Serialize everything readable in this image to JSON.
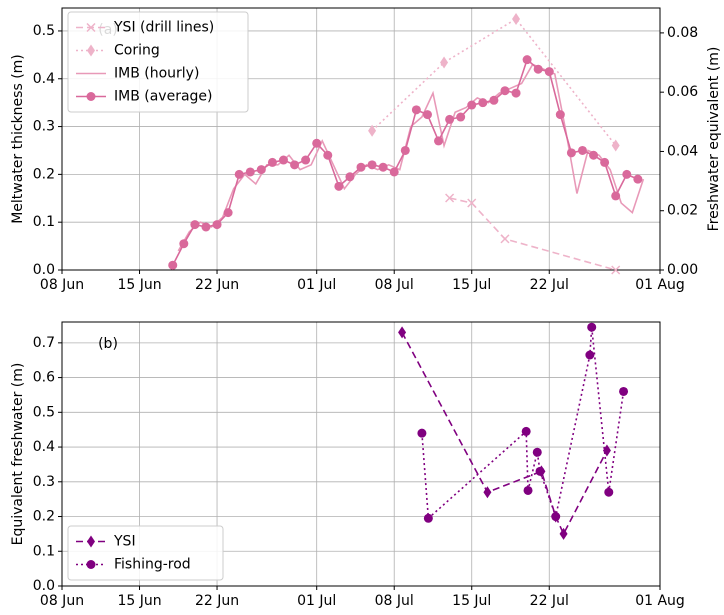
{
  "chart_data": [
    {
      "type": "line",
      "annotation": "(a)",
      "ylabel": "Meltwater thickness (m)",
      "y2label": "Freshwater equivalent (m)",
      "xlim": [
        "06-08",
        "08-01"
      ],
      "xticks": [
        {
          "value": "06-08",
          "label": "08 Jun"
        },
        {
          "value": "06-15",
          "label": "15 Jun"
        },
        {
          "value": "06-22",
          "label": "22 Jun"
        },
        {
          "value": "07-01",
          "label": "01 Jul"
        },
        {
          "value": "07-08",
          "label": "08 Jul"
        },
        {
          "value": "07-15",
          "label": "15 Jul"
        },
        {
          "value": "07-22",
          "label": "22 Jul"
        },
        {
          "value": "08-01",
          "label": "01 Aug"
        }
      ],
      "ylim": [
        0,
        0.548
      ],
      "yticks": [
        {
          "value": 0,
          "label": "0.0"
        },
        0.1,
        0.2,
        0.3,
        0.4,
        0.5
      ],
      "y2lim": [
        0,
        0.0884
      ],
      "y2ticks": [
        {
          "value": 0,
          "label": "0.00"
        },
        0.02,
        0.04,
        0.06,
        0.08
      ],
      "grid": true,
      "legend": "upper left",
      "series": [
        {
          "name": "YSI (drill lines)",
          "color": "#eeb3c9",
          "style": "dashed",
          "marker": "x",
          "axis": "y2",
          "x": [
            "07-13",
            "07-15",
            "07-18",
            "07-28"
          ],
          "values": [
            0.0243,
            0.0226,
            0.0105,
            0.0
          ]
        },
        {
          "name": "Coring",
          "color": "#eeb3c9",
          "style": "dotted",
          "marker": "diamond",
          "axis": "y2",
          "x": [
            "07-06",
            "07-12T12",
            "07-19",
            "07-28"
          ],
          "values": [
            0.047,
            0.07,
            0.0847,
            0.042
          ]
        },
        {
          "name": "IMB (hourly)",
          "color": "#e899b8",
          "style": "solid",
          "marker": "none",
          "x": [
            "06-18T12",
            "06-19T12",
            "06-20T12",
            "06-21T12",
            "06-22T12",
            "06-23T12",
            "06-24T12",
            "06-25T12",
            "06-26T12",
            "06-27T12",
            "06-28T12",
            "06-29T12",
            "06-30T12",
            "07-01T12",
            "07-02T12",
            "07-03T12",
            "07-04T12",
            "07-05T12",
            "07-06T12",
            "07-07T12",
            "07-08T12",
            "07-09T12",
            "07-10T12",
            "07-11T12",
            "07-12T12",
            "07-13T12",
            "07-14T12",
            "07-15T12",
            "07-16T12",
            "07-17T12",
            "07-18T12",
            "07-19T12",
            "07-20T12",
            "07-21T12",
            "07-22T12",
            "07-23T12",
            "07-24T12",
            "07-25T12",
            "07-26T12",
            "07-27T12",
            "07-28T12",
            "07-29T12",
            "07-30T12"
          ],
          "values": [
            0.04,
            0.08,
            0.1,
            0.09,
            0.11,
            0.17,
            0.2,
            0.18,
            0.22,
            0.22,
            0.24,
            0.21,
            0.22,
            0.27,
            0.22,
            0.17,
            0.2,
            0.22,
            0.21,
            0.22,
            0.21,
            0.3,
            0.32,
            0.37,
            0.26,
            0.33,
            0.34,
            0.36,
            0.35,
            0.37,
            0.38,
            0.39,
            0.43,
            0.42,
            0.41,
            0.29,
            0.16,
            0.25,
            0.24,
            0.21,
            0.14,
            0.12,
            0.19
          ]
        },
        {
          "name": "IMB (average)",
          "color": "#d9699b",
          "style": "solid",
          "marker": "circle",
          "x": [
            "06-18",
            "06-19",
            "06-20",
            "06-21",
            "06-22",
            "06-23",
            "06-24",
            "06-25",
            "06-26",
            "06-27",
            "06-28",
            "06-29",
            "06-30",
            "07-01",
            "07-02",
            "07-03",
            "07-04",
            "07-05",
            "07-06",
            "07-07",
            "07-08",
            "07-09",
            "07-10",
            "07-11",
            "07-12",
            "07-13",
            "07-14",
            "07-15",
            "07-16",
            "07-17",
            "07-18",
            "07-19",
            "07-20",
            "07-21",
            "07-22",
            "07-23",
            "07-24",
            "07-25",
            "07-26",
            "07-27",
            "07-28",
            "07-29",
            "07-30"
          ],
          "values": [
            0.01,
            0.055,
            0.095,
            0.09,
            0.095,
            0.12,
            0.2,
            0.205,
            0.21,
            0.225,
            0.23,
            0.22,
            0.23,
            0.265,
            0.24,
            0.175,
            0.195,
            0.215,
            0.22,
            0.215,
            0.205,
            0.25,
            0.335,
            0.325,
            0.27,
            0.315,
            0.32,
            0.345,
            0.35,
            0.355,
            0.375,
            0.37,
            0.44,
            0.42,
            0.415,
            0.325,
            0.245,
            0.25,
            0.24,
            0.225,
            0.155,
            0.2,
            0.19
          ]
        }
      ]
    },
    {
      "type": "line",
      "annotation": "(b)",
      "ylabel": "Equivalent freshwater (m)",
      "xlim": [
        "06-08",
        "08-01"
      ],
      "xticks": [
        {
          "value": "06-08",
          "label": "08 Jun"
        },
        {
          "value": "06-15",
          "label": "15 Jun"
        },
        {
          "value": "06-22",
          "label": "22 Jun"
        },
        {
          "value": "07-01",
          "label": "01 Jul"
        },
        {
          "value": "07-08",
          "label": "08 Jul"
        },
        {
          "value": "07-15",
          "label": "15 Jul"
        },
        {
          "value": "07-22",
          "label": "22 Jul"
        },
        {
          "value": "08-01",
          "label": "01 Aug"
        }
      ],
      "ylim": [
        0,
        0.76
      ],
      "yticks": [
        {
          "value": 0,
          "label": "0.0"
        },
        0.1,
        0.2,
        0.3,
        0.4,
        0.5,
        0.6,
        0.7
      ],
      "grid": true,
      "legend": "lower left",
      "series": [
        {
          "name": "YSI",
          "color": "#800080",
          "style": "dashed",
          "marker": "diamond",
          "x": [
            "07-08T17",
            "07-16T10",
            "07-21T07",
            "07-22T14",
            "07-23T07",
            "07-27T05"
          ],
          "values": [
            0.73,
            0.27,
            0.33,
            0.2,
            0.15,
            0.39
          ]
        },
        {
          "name": "Fishing-rod",
          "color": "#800080",
          "style": "dotted",
          "marker": "circle",
          "x": [
            "07-10T12",
            "07-11T02",
            "07-19T22",
            "07-20T02",
            "07-20T22",
            "07-21T04",
            "07-22T14",
            "07-25T16",
            "07-25T20",
            "07-27T09",
            "07-28T17"
          ],
          "values": [
            0.44,
            0.195,
            0.445,
            0.275,
            0.385,
            0.33,
            0.2,
            0.665,
            0.745,
            0.27,
            0.56
          ]
        }
      ]
    }
  ]
}
